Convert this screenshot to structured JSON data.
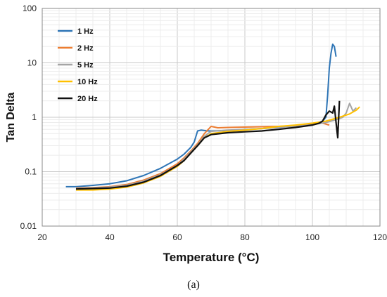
{
  "chart_data": {
    "type": "line",
    "xlabel": "Temperature (°C)",
    "ylabel": "Tan Delta",
    "xlim": [
      20,
      120
    ],
    "ylim": [
      0.01,
      100
    ],
    "y_scale": "log",
    "x_ticks": [
      "20",
      "40",
      "60",
      "80",
      "100",
      "120"
    ],
    "y_ticks": [
      "0.01",
      "0.1",
      "1",
      "10",
      "100"
    ],
    "grid": true,
    "legend_position": "top-left",
    "series": [
      {
        "name": "1 Hz",
        "color": "#2e75b6",
        "x": [
          27,
          30,
          35,
          40,
          45,
          50,
          55,
          60,
          62,
          64,
          65,
          66,
          67,
          68,
          69,
          70,
          75,
          80,
          85,
          90,
          95,
          100,
          102,
          103,
          104,
          104.5,
          105,
          105.5,
          106,
          106.5,
          107
        ],
        "y": [
          0.053,
          0.053,
          0.056,
          0.06,
          0.068,
          0.085,
          0.115,
          0.17,
          0.21,
          0.28,
          0.35,
          0.56,
          0.58,
          0.57,
          0.56,
          0.56,
          0.57,
          0.6,
          0.62,
          0.65,
          0.7,
          0.75,
          0.8,
          0.85,
          1.0,
          2.5,
          8,
          15,
          22,
          20,
          13
        ]
      },
      {
        "name": "2 Hz",
        "color": "#ed7d31",
        "x": [
          30,
          35,
          40,
          45,
          50,
          55,
          60,
          62,
          64,
          66,
          68,
          70,
          72,
          75,
          80,
          85,
          90,
          95,
          100,
          103,
          105
        ],
        "y": [
          0.05,
          0.051,
          0.053,
          0.058,
          0.07,
          0.092,
          0.14,
          0.18,
          0.24,
          0.33,
          0.5,
          0.68,
          0.64,
          0.65,
          0.66,
          0.67,
          0.68,
          0.7,
          0.74,
          0.78,
          0.72
        ]
      },
      {
        "name": "5 Hz",
        "color": "#a5a5a5",
        "x": [
          30,
          35,
          40,
          45,
          50,
          55,
          60,
          62,
          64,
          66,
          68,
          70,
          75,
          80,
          85,
          90,
          95,
          100,
          104,
          107,
          109,
          110,
          111,
          112,
          113
        ],
        "y": [
          0.049,
          0.05,
          0.052,
          0.056,
          0.067,
          0.088,
          0.13,
          0.17,
          0.23,
          0.31,
          0.45,
          0.55,
          0.58,
          0.6,
          0.62,
          0.65,
          0.68,
          0.73,
          0.8,
          0.9,
          1.0,
          1.2,
          1.8,
          1.3,
          1.5
        ]
      },
      {
        "name": "10 Hz",
        "color": "#ffc000",
        "x": [
          30,
          35,
          40,
          45,
          50,
          55,
          60,
          62,
          64,
          66,
          68,
          70,
          75,
          80,
          85,
          90,
          95,
          100,
          104,
          108,
          111,
          113,
          114
        ],
        "y": [
          0.046,
          0.046,
          0.048,
          0.052,
          0.062,
          0.082,
          0.125,
          0.16,
          0.22,
          0.3,
          0.42,
          0.5,
          0.55,
          0.58,
          0.62,
          0.68,
          0.72,
          0.78,
          0.85,
          1.0,
          1.15,
          1.35,
          1.55
        ]
      },
      {
        "name": "20 Hz",
        "color": "#111111",
        "x": [
          30,
          35,
          40,
          45,
          50,
          55,
          60,
          62,
          64,
          66,
          68,
          70,
          75,
          80,
          85,
          90,
          95,
          100,
          102,
          103,
          104,
          105,
          106,
          106.5,
          107,
          107.5,
          108
        ],
        "y": [
          0.048,
          0.049,
          0.05,
          0.054,
          0.064,
          0.085,
          0.13,
          0.16,
          0.22,
          0.3,
          0.42,
          0.48,
          0.52,
          0.54,
          0.56,
          0.6,
          0.65,
          0.72,
          0.78,
          0.85,
          1.1,
          1.3,
          1.2,
          1.6,
          0.8,
          0.42,
          2.0
        ]
      }
    ]
  },
  "caption": "(a)"
}
